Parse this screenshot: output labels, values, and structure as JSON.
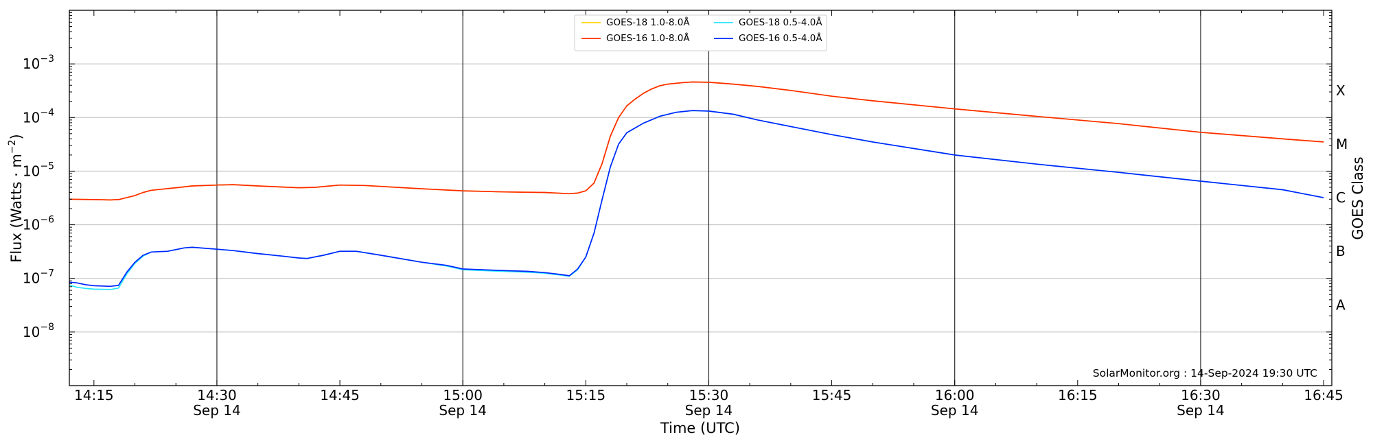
{
  "chart_data": {
    "type": "line",
    "xlabel": "Time (UTC)",
    "ylabel_main": "Flux (Watts · m",
    "ylabel_sup": "−2",
    "ylabel_close": ")",
    "y2label": "GOES Class",
    "credit": "SolarMonitor.org : 14-Sep-2024 19:30 UTC",
    "yscale": "log",
    "xlim": [
      "14:12",
      "16:46"
    ],
    "ylim": [
      1e-09,
      0.01
    ],
    "grid": "horizontal at decades; vertical at half-hour marks",
    "legend_position": "top-center",
    "x_ticks": [
      {
        "time": "14:15",
        "line1": "14:15",
        "line2": ""
      },
      {
        "time": "14:30",
        "line1": "14:30",
        "line2": "Sep 14"
      },
      {
        "time": "14:45",
        "line1": "14:45",
        "line2": ""
      },
      {
        "time": "15:00",
        "line1": "15:00",
        "line2": "Sep 14"
      },
      {
        "time": "15:15",
        "line1": "15:15",
        "line2": ""
      },
      {
        "time": "15:30",
        "line1": "15:30",
        "line2": "Sep 14"
      },
      {
        "time": "15:45",
        "line1": "15:45",
        "line2": ""
      },
      {
        "time": "16:00",
        "line1": "16:00",
        "line2": "Sep 14"
      },
      {
        "time": "16:15",
        "line1": "16:15",
        "line2": ""
      },
      {
        "time": "16:30",
        "line1": "16:30",
        "line2": "Sep 14"
      },
      {
        "time": "16:45",
        "line1": "16:45",
        "line2": ""
      }
    ],
    "vertical_lines": [
      "14:30",
      "15:00",
      "15:30",
      "16:00",
      "16:30"
    ],
    "y_ticks": [
      {
        "value": 1e-08,
        "base": "10",
        "exp": "−8"
      },
      {
        "value": 1e-07,
        "base": "10",
        "exp": "−7"
      },
      {
        "value": 1e-06,
        "base": "10",
        "exp": "−6"
      },
      {
        "value": 1e-05,
        "base": "10",
        "exp": "−5"
      },
      {
        "value": 0.0001,
        "base": "10",
        "exp": "−4"
      },
      {
        "value": 0.001,
        "base": "10",
        "exp": "−3"
      }
    ],
    "goes_classes": [
      {
        "label": "A",
        "value": 3.2e-08
      },
      {
        "label": "B",
        "value": 3.2e-07
      },
      {
        "label": "C",
        "value": 3.2e-06
      },
      {
        "label": "M",
        "value": 3.2e-05
      },
      {
        "label": "X",
        "value": 0.00032
      }
    ],
    "series": [
      {
        "name": "GOES-18 1.0-8.0Å",
        "color": "#ffd400",
        "x": [
          "14:12",
          "14:15",
          "14:17",
          "14:18",
          "14:20",
          "14:21",
          "14:22",
          "14:25",
          "14:27",
          "14:30",
          "14:32",
          "14:35",
          "14:40",
          "14:42",
          "14:45",
          "14:48",
          "14:55",
          "15:00",
          "15:05",
          "15:10",
          "15:13",
          "15:14",
          "15:15",
          "15:16",
          "15:17",
          "15:18",
          "15:19",
          "15:20",
          "15:21",
          "15:22",
          "15:23",
          "15:24",
          "15:25",
          "15:27",
          "15:28",
          "15:30",
          "15:33",
          "15:36",
          "15:40",
          "15:45",
          "15:50",
          "16:00",
          "16:10",
          "16:20",
          "16:30",
          "16:40",
          "16:45"
        ],
        "values": [
          3e-06,
          2.95e-06,
          2.9e-06,
          2.95e-06,
          3.5e-06,
          4e-06,
          4.4e-06,
          4.9e-06,
          5.3e-06,
          5.5e-06,
          5.6e-06,
          5.3e-06,
          4.9e-06,
          5e-06,
          5.5e-06,
          5.4e-06,
          4.7e-06,
          4.3e-06,
          4.1e-06,
          4e-06,
          3.8e-06,
          3.9e-06,
          4.3e-06,
          6e-06,
          1.4e-05,
          4.5e-05,
          0.0001,
          0.000165,
          0.00022,
          0.00028,
          0.00034,
          0.00039,
          0.00042,
          0.00045,
          0.00046,
          0.000455,
          0.00042,
          0.00038,
          0.00032,
          0.00025,
          0.000205,
          0.000145,
          0.000105,
          7.7e-05,
          5.3e-05,
          4e-05,
          3.5e-05
        ]
      },
      {
        "name": "GOES-16 1.0-8.0Å",
        "color": "#ff2a00",
        "x": [
          "14:12",
          "14:15",
          "14:17",
          "14:18",
          "14:20",
          "14:21",
          "14:22",
          "14:25",
          "14:27",
          "14:30",
          "14:32",
          "14:35",
          "14:40",
          "14:42",
          "14:45",
          "14:48",
          "14:55",
          "15:00",
          "15:05",
          "15:10",
          "15:13",
          "15:14",
          "15:15",
          "15:16",
          "15:17",
          "15:18",
          "15:19",
          "15:20",
          "15:21",
          "15:22",
          "15:23",
          "15:24",
          "15:25",
          "15:27",
          "15:28",
          "15:30",
          "15:33",
          "15:36",
          "15:40",
          "15:45",
          "15:50",
          "16:00",
          "16:10",
          "16:20",
          "16:30",
          "16:40",
          "16:45"
        ],
        "values": [
          3e-06,
          2.95e-06,
          2.9e-06,
          2.95e-06,
          3.5e-06,
          4e-06,
          4.4e-06,
          4.9e-06,
          5.3e-06,
          5.5e-06,
          5.6e-06,
          5.3e-06,
          4.9e-06,
          5e-06,
          5.5e-06,
          5.4e-06,
          4.7e-06,
          4.3e-06,
          4.1e-06,
          4e-06,
          3.8e-06,
          3.9e-06,
          4.3e-06,
          6e-06,
          1.4e-05,
          4.5e-05,
          0.0001,
          0.000165,
          0.00022,
          0.00028,
          0.00034,
          0.00039,
          0.00042,
          0.00045,
          0.00046,
          0.000455,
          0.00042,
          0.00038,
          0.00032,
          0.00025,
          0.000205,
          0.000145,
          0.000105,
          7.7e-05,
          5.3e-05,
          4e-05,
          3.5e-05
        ]
      },
      {
        "name": "GOES-18 0.5-4.0Å",
        "color": "#22e6ff",
        "x": [
          "14:12",
          "14:13",
          "14:14",
          "14:15",
          "14:17",
          "14:18",
          "14:19",
          "14:20",
          "14:21",
          "14:22",
          "14:24",
          "14:26",
          "14:27",
          "14:30",
          "14:32",
          "14:35",
          "14:38",
          "14:40",
          "14:41",
          "14:43",
          "14:45",
          "14:47",
          "14:50",
          "14:55",
          "14:58",
          "15:00",
          "15:05",
          "15:08",
          "15:10",
          "15:12",
          "15:13",
          "15:14",
          "15:15",
          "15:16",
          "15:17",
          "15:18",
          "15:19",
          "15:20",
          "15:22",
          "15:24",
          "15:26",
          "15:28",
          "15:30",
          "15:33",
          "15:36",
          "15:40",
          "15:45",
          "15:50",
          "16:00",
          "16:10",
          "16:20",
          "16:30",
          "16:40",
          "16:45"
        ],
        "values": [
          7.5e-08,
          6.8e-08,
          6.5e-08,
          6.3e-08,
          6.2e-08,
          6.6e-08,
          1.2e-07,
          1.9e-07,
          2.6e-07,
          3.1e-07,
          3.2e-07,
          3.7e-07,
          3.8e-07,
          3.5e-07,
          3.3e-07,
          2.9e-07,
          2.6e-07,
          2.4e-07,
          2.35e-07,
          2.7e-07,
          3.2e-07,
          3.2e-07,
          2.7e-07,
          2e-07,
          1.7e-07,
          1.45e-07,
          1.35e-07,
          1.3e-07,
          1.25e-07,
          1.15e-07,
          1.1e-07,
          1.45e-07,
          2.5e-07,
          7e-07,
          3e-06,
          1.2e-05,
          3.2e-05,
          5.2e-05,
          7.8e-05,
          0.000105,
          0.000125,
          0.000135,
          0.000132,
          0.000115,
          9e-05,
          6.8e-05,
          4.8e-05,
          3.5e-05,
          2e-05,
          1.35e-05,
          9.5e-06,
          6.5e-06,
          4.5e-06,
          3.2e-06
        ]
      },
      {
        "name": "GOES-16 0.5-4.0Å",
        "color": "#0026ff",
        "x": [
          "14:12",
          "14:13",
          "14:14",
          "14:15",
          "14:17",
          "14:18",
          "14:19",
          "14:20",
          "14:21",
          "14:22",
          "14:24",
          "14:26",
          "14:27",
          "14:30",
          "14:32",
          "14:35",
          "14:38",
          "14:40",
          "14:41",
          "14:43",
          "14:45",
          "14:47",
          "14:50",
          "14:55",
          "14:58",
          "15:00",
          "15:05",
          "15:08",
          "15:10",
          "15:12",
          "15:13",
          "15:14",
          "15:15",
          "15:16",
          "15:17",
          "15:18",
          "15:19",
          "15:20",
          "15:22",
          "15:24",
          "15:26",
          "15:28",
          "15:30",
          "15:33",
          "15:36",
          "15:40",
          "15:45",
          "15:50",
          "16:00",
          "16:10",
          "16:20",
          "16:30",
          "16:40",
          "16:45"
        ],
        "values": [
          8.5e-08,
          8.2e-08,
          7.6e-08,
          7.3e-08,
          7.1e-08,
          7.4e-08,
          1.3e-07,
          2e-07,
          2.7e-07,
          3.1e-07,
          3.2e-07,
          3.7e-07,
          3.8e-07,
          3.5e-07,
          3.3e-07,
          2.9e-07,
          2.6e-07,
          2.4e-07,
          2.35e-07,
          2.7e-07,
          3.2e-07,
          3.2e-07,
          2.7e-07,
          2e-07,
          1.75e-07,
          1.5e-07,
          1.4e-07,
          1.35e-07,
          1.28e-07,
          1.18e-07,
          1.12e-07,
          1.5e-07,
          2.5e-07,
          7e-07,
          3e-06,
          1.2e-05,
          3.2e-05,
          5.2e-05,
          7.8e-05,
          0.000105,
          0.000125,
          0.000135,
          0.000132,
          0.000115,
          9e-05,
          6.8e-05,
          4.8e-05,
          3.5e-05,
          2e-05,
          1.35e-05,
          9.5e-06,
          6.5e-06,
          4.5e-06,
          3.2e-06
        ]
      }
    ]
  }
}
